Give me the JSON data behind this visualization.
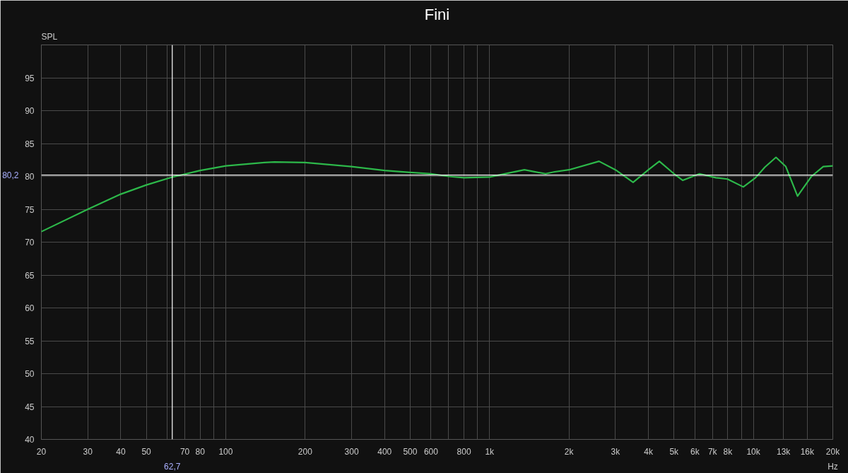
{
  "chart_data": {
    "type": "line",
    "title": "Fini",
    "ylabel": "SPL",
    "log": "x",
    "grid": true,
    "marker": "none",
    "line_style": "solid",
    "xlim": [
      20,
      20000
    ],
    "ylim": [
      40,
      100
    ],
    "xticks": [
      20,
      30,
      40,
      50,
      {
        "value": 60,
        "label": null
      },
      70,
      80,
      {
        "value": 90,
        "label": null
      },
      100,
      200,
      300,
      400,
      500,
      600,
      {
        "value": 700,
        "label": null
      },
      800,
      {
        "value": 900,
        "label": null
      },
      {
        "value": 1000,
        "label": "1k"
      },
      {
        "value": 2000,
        "label": "2k"
      },
      {
        "value": 3000,
        "label": "3k"
      },
      {
        "value": 4000,
        "label": "4k"
      },
      {
        "value": 5000,
        "label": "5k"
      },
      {
        "value": 6000,
        "label": "6k"
      },
      {
        "value": 7000,
        "label": "7k"
      },
      {
        "value": 8000,
        "label": "8k"
      },
      {
        "value": 9000,
        "label": null
      },
      {
        "value": 10000,
        "label": "10k"
      },
      {
        "value": 13000,
        "label": "13k"
      },
      {
        "value": 16000,
        "label": "16k"
      },
      {
        "value": 20000,
        "label": "20k"
      }
    ],
    "xlabel": "Hz",
    "yticks": [
      40,
      45,
      50,
      55,
      60,
      65,
      70,
      75,
      80,
      85,
      90,
      95
    ],
    "ref_lines": [
      {
        "axis": "x",
        "value": 62.7,
        "label": "62,7",
        "color": "#ffffff"
      },
      {
        "axis": "y",
        "value": 80.2,
        "label": "80,2",
        "color": "#ffffff"
      }
    ],
    "series": [
      {
        "color": "#2db84a",
        "x": [
          20,
          30,
          40,
          50,
          62.7,
          80,
          100,
          140,
          153,
          200,
          300,
          400,
          500,
          600,
          700,
          800,
          1000,
          1355,
          1630,
          1765,
          2000,
          2600,
          3000,
          3500,
          4000,
          4400,
          5000,
          5400,
          6250,
          7200,
          7970,
          9160,
          10190,
          11050,
          12180,
          13270,
          14700,
          16600,
          18400,
          20000
        ],
        "values": [
          71.6,
          75.0,
          77.3,
          78.7,
          79.9,
          80.9,
          81.6,
          82.1,
          82.2,
          82.1,
          81.5,
          80.9,
          80.6,
          80.4,
          80.0,
          79.8,
          79.9,
          81.0,
          80.4,
          80.7,
          81.0,
          82.3,
          81.0,
          79.1,
          81.0,
          82.3,
          80.4,
          79.4,
          80.4,
          79.8,
          79.6,
          78.4,
          79.8,
          81.4,
          82.9,
          81.5,
          77.0,
          80.0,
          81.5,
          81.6
        ]
      }
    ]
  }
}
